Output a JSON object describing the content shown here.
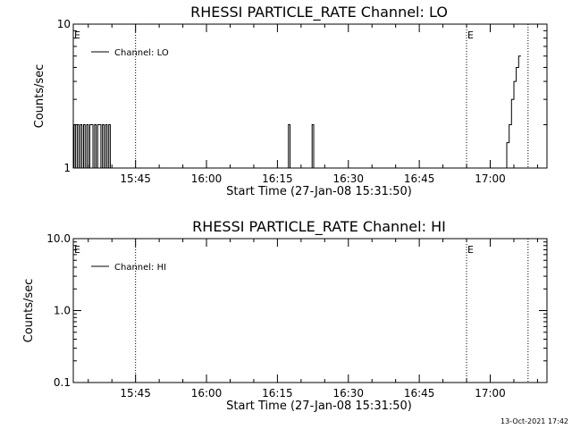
{
  "footer": {
    "timestamp": "13-Oct-2021 17:42"
  },
  "chart_data": [
    {
      "type": "line",
      "title": "RHESSI PARTICLE_RATE Channel: LO",
      "xlabel": "Start Time (27-Jan-08 15:31:50)",
      "ylabel": "Counts/sec",
      "y_scale": "log",
      "ylim": [
        1,
        10
      ],
      "yticks": [
        1,
        10
      ],
      "ytick_labels": [
        "1",
        "10"
      ],
      "xlim": [
        "15:31:50",
        "17:12:00"
      ],
      "xticks": [
        "15:45",
        "16:00",
        "16:15",
        "16:30",
        "16:45",
        "17:00"
      ],
      "event_lines": [
        "15:45",
        "16:55",
        "17:08"
      ],
      "event_markers": [
        {
          "text": "E",
          "time": "15:31:50"
        },
        {
          "text": "E",
          "time": "16:55"
        }
      ],
      "legend": {
        "position": "top-left",
        "entries": [
          "Channel: LO"
        ]
      },
      "series": [
        {
          "name": "Channel: LO",
          "x": [
            "15:31:50",
            "15:32",
            "15:32:20",
            "15:32:40",
            "15:33",
            "15:33:20",
            "15:33:40",
            "15:34",
            "15:34:20",
            "15:34:40",
            "15:35",
            "15:35:20",
            "15:35:40",
            "15:36",
            "15:36:20",
            "15:36:40",
            "15:37",
            "15:37:20",
            "15:37:40",
            "15:38",
            "15:38:20",
            "15:38:40",
            "15:39",
            "15:39:20",
            "15:39:40",
            "15:40",
            "16:17",
            "16:17:20",
            "16:17:40",
            "16:22",
            "16:22:20",
            "16:22:40",
            "17:03",
            "17:03:30",
            "17:04",
            "17:04:30",
            "17:05",
            "17:05:30",
            "17:06",
            "17:06:30"
          ],
          "y": [
            1,
            2,
            1,
            2,
            1,
            2,
            1,
            2,
            1,
            2,
            1,
            2,
            2,
            1,
            2,
            1,
            2,
            2,
            1,
            2,
            1,
            2,
            1,
            2,
            1,
            1,
            1,
            2,
            1,
            1,
            2,
            1,
            1,
            1.5,
            2,
            3,
            4,
            5,
            6,
            6
          ]
        }
      ]
    },
    {
      "type": "line",
      "title": "RHESSI PARTICLE_RATE Channel: HI",
      "xlabel": "Start Time (27-Jan-08 15:31:50)",
      "ylabel": "Counts/sec",
      "y_scale": "log",
      "ylim": [
        0.1,
        10
      ],
      "yticks": [
        0.1,
        1,
        10
      ],
      "ytick_labels": [
        "0.1",
        "1.0",
        "10.0"
      ],
      "xlim": [
        "15:31:50",
        "17:12:00"
      ],
      "xticks": [
        "15:45",
        "16:00",
        "16:15",
        "16:30",
        "16:45",
        "17:00"
      ],
      "event_lines": [
        "15:45",
        "16:55",
        "17:08"
      ],
      "event_markers": [
        {
          "text": "E",
          "time": "15:31:50"
        },
        {
          "text": "E",
          "time": "16:55"
        }
      ],
      "legend": {
        "position": "top-left",
        "entries": [
          "Channel: HI"
        ]
      },
      "series": [
        {
          "name": "Channel: HI",
          "x": [],
          "y": []
        }
      ]
    }
  ]
}
